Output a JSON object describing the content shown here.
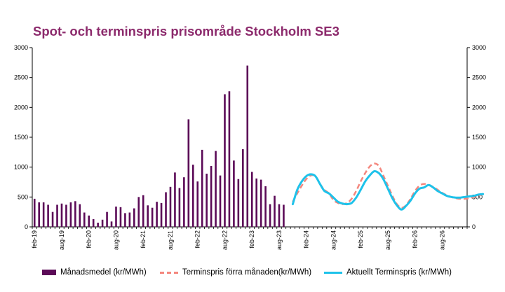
{
  "chart_data": {
    "type": "bar+line",
    "title": "Spot- och terminspris prisområde Stockholm SE3",
    "ylim": [
      0,
      3000
    ],
    "yticks": [
      0,
      500,
      1000,
      1500,
      2000,
      2500,
      3000
    ],
    "xticks": [
      "feb-19",
      "aug-19",
      "feb-20",
      "aug-20",
      "feb-21",
      "aug-21",
      "feb-22",
      "aug-22",
      "feb-23",
      "aug-23",
      "feb-24",
      "aug-24",
      "feb-25",
      "aug-25",
      "feb-26",
      "aug-26"
    ],
    "grid": false,
    "legend_position": "bottom",
    "colors": {
      "bars": "#5b0a57",
      "forward_prev": "#f4877e",
      "forward_current": "#1ec2ea",
      "title": "#8c2a6c"
    },
    "series": [
      {
        "name": "Månadsmedel (kr/MWh)",
        "kind": "bar",
        "start": "feb-19",
        "values": [
          470,
          410,
          410,
          370,
          250,
          370,
          390,
          370,
          410,
          430,
          380,
          240,
          190,
          130,
          70,
          120,
          250,
          90,
          340,
          330,
          230,
          240,
          310,
          500,
          530,
          360,
          320,
          420,
          400,
          580,
          670,
          910,
          650,
          830,
          1800,
          1040,
          760,
          1290,
          890,
          1020,
          1270,
          860,
          2220,
          2270,
          1110,
          800,
          1300,
          2700,
          920,
          810,
          790,
          680,
          380,
          520,
          380,
          370
        ]
      },
      {
        "name": "Terminspris förra månaden(kr/MWh)",
        "kind": "line",
        "start": "nov-23",
        "values": [
          420,
          560,
          690,
          800,
          860,
          850,
          720,
          620,
          560,
          450,
          400,
          380,
          400,
          470,
          600,
          760,
          900,
          1010,
          1060,
          1020,
          860,
          690,
          520,
          380,
          320,
          360,
          470,
          600,
          690,
          720,
          700,
          670,
          620,
          570,
          530,
          500,
          480,
          470,
          470,
          480,
          500,
          520,
          550
        ]
      },
      {
        "name": "Aktuellt Terminspris (kr/MWh)",
        "kind": "line",
        "start": "nov-23",
        "values": [
          380,
          620,
          760,
          850,
          880,
          850,
          720,
          600,
          560,
          490,
          420,
          390,
          380,
          400,
          490,
          620,
          760,
          860,
          930,
          900,
          800,
          640,
          480,
          360,
          290,
          350,
          440,
          560,
          640,
          660,
          700,
          660,
          600,
          560,
          520,
          500,
          490,
          490,
          500,
          510,
          520,
          540,
          550
        ]
      }
    ]
  }
}
